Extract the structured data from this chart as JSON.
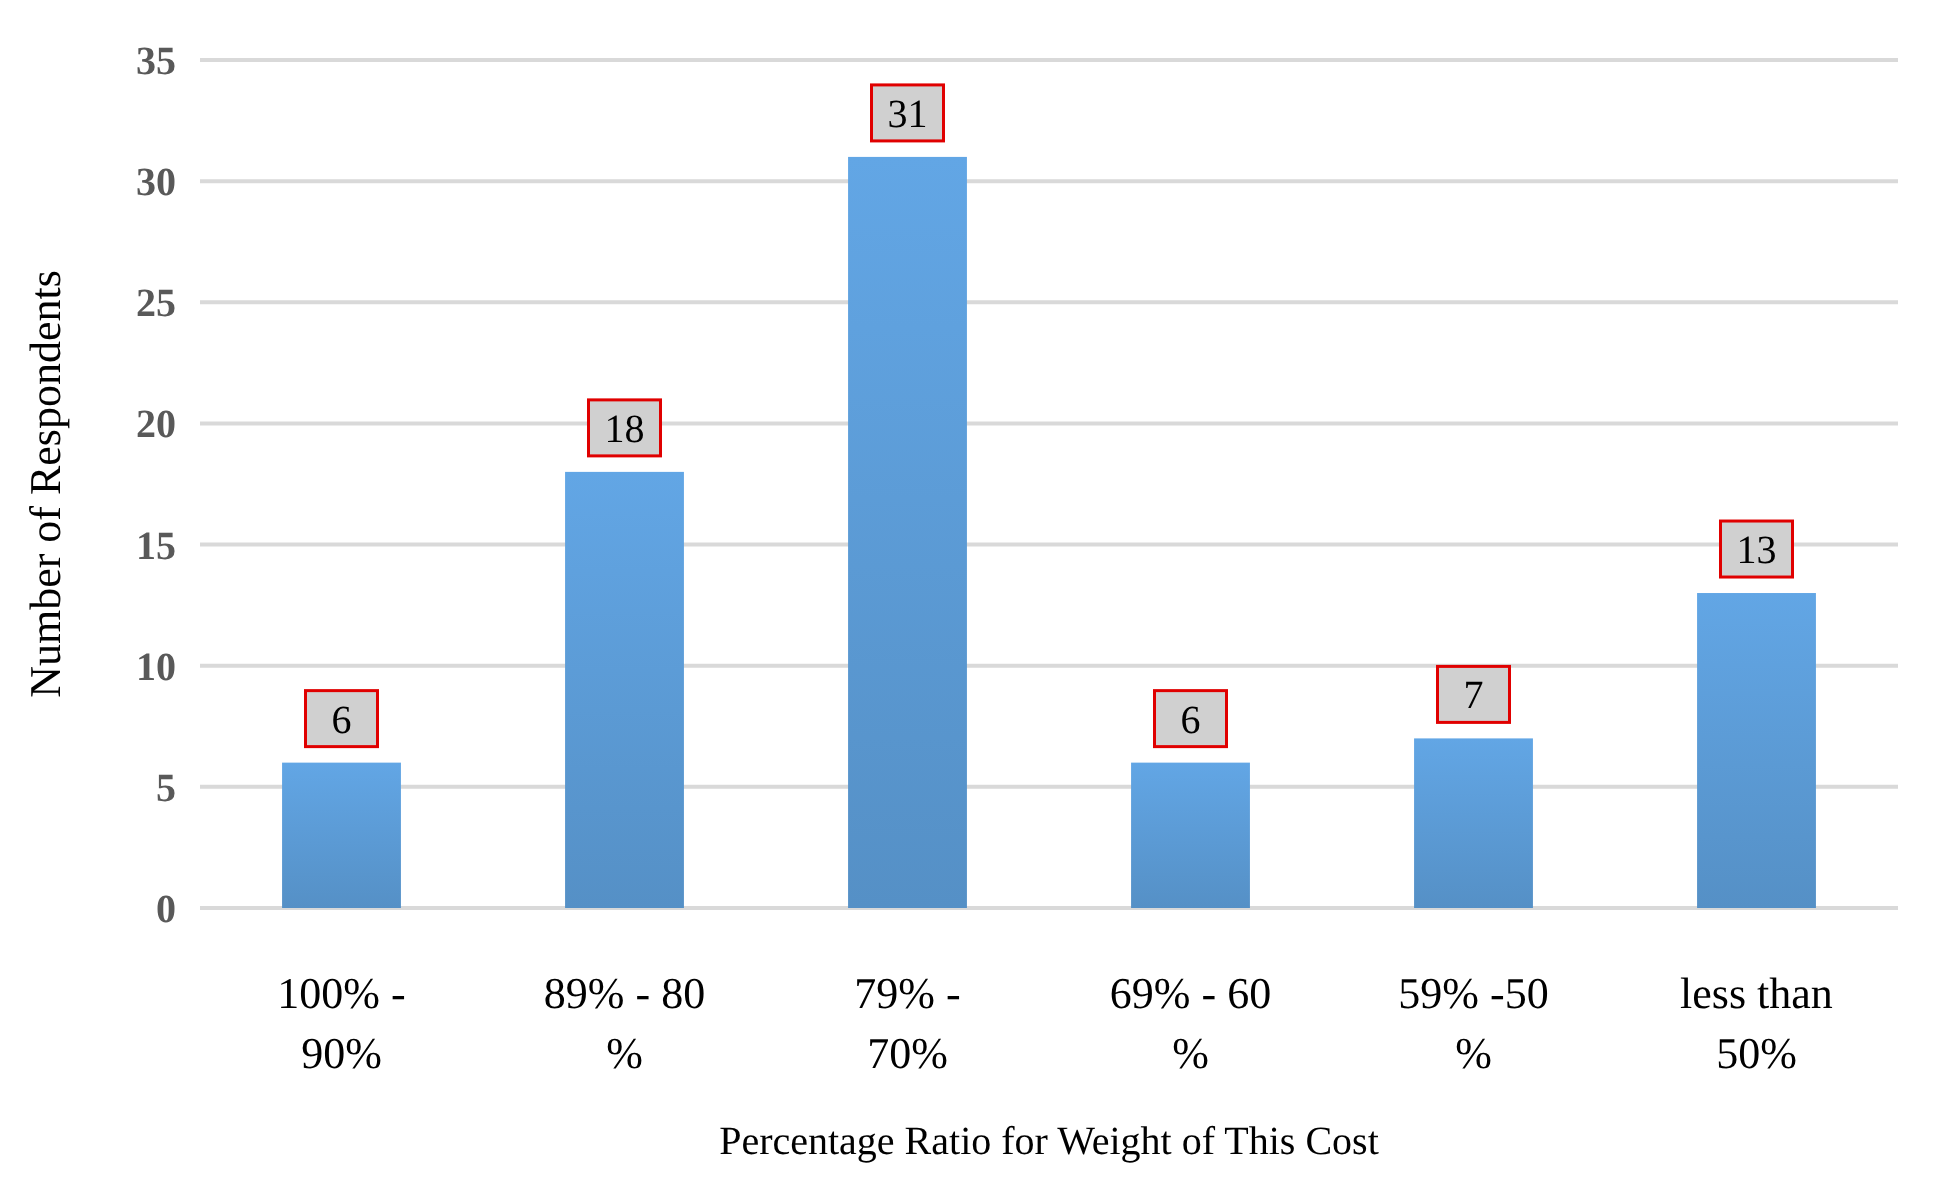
{
  "chart_data": {
    "type": "bar",
    "xlabel": "Percentage Ratio for Weight of This Cost",
    "ylabel": "Number of Respondents",
    "categories": [
      "100% -\n90%",
      "89% - 80\n%",
      "79% -\n70%",
      "69% - 60\n%",
      "59% -50\n%",
      "less than\n50%"
    ],
    "values": [
      6,
      18,
      31,
      6,
      7,
      13
    ],
    "color": "#5b9bd5",
    "ylim": [
      0,
      35
    ],
    "yticks": [
      0,
      5,
      10,
      15,
      20,
      25,
      30,
      35
    ],
    "grid": "y",
    "data_labels": true
  }
}
